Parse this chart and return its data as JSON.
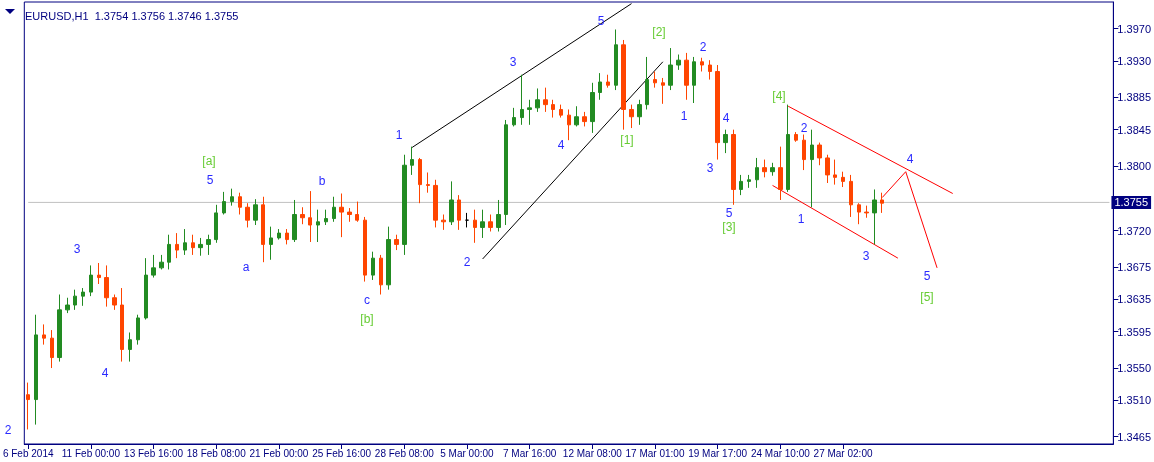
{
  "chart_data": {
    "type": "candlestick",
    "title": "EURUSD,H1  1.3754 1.3756 1.3746 1.3755",
    "categories": [
      "6 Feb 2014",
      null,
      null,
      null,
      null,
      null,
      null,
      null,
      "11 Feb 00:00",
      null,
      null,
      null,
      null,
      null,
      null,
      null,
      "13 Feb 16:00",
      null,
      null,
      null,
      null,
      null,
      null,
      null,
      "18 Feb 08:00",
      null,
      null,
      null,
      null,
      null,
      null,
      null,
      "21 Feb 00:00",
      null,
      null,
      null,
      null,
      null,
      null,
      null,
      "25 Feb 16:00",
      null,
      null,
      null,
      null,
      null,
      null,
      null,
      "28 Feb 08:00",
      null,
      null,
      null,
      null,
      null,
      null,
      null,
      "5 Mar 00:00",
      null,
      null,
      null,
      null,
      null,
      null,
      null,
      "7 Mar 16:00",
      null,
      null,
      null,
      null,
      null,
      null,
      null,
      "12 Mar 08:00",
      null,
      null,
      null,
      null,
      null,
      null,
      null,
      "17 Mar 01:00",
      null,
      null,
      null,
      null,
      null,
      null,
      null,
      "19 Mar 17:00",
      null,
      null,
      null,
      null,
      null,
      null,
      null,
      "24 Mar 10:00",
      null,
      null,
      null,
      null,
      null,
      null,
      null,
      "27 Mar 02:00",
      null,
      null,
      null,
      null,
      null,
      null,
      null,
      null,
      null,
      null,
      null,
      null,
      null,
      null,
      null,
      null,
      null,
      null,
      null,
      null,
      null,
      null,
      null,
      null,
      null,
      null,
      null,
      null,
      null,
      null,
      null,
      null,
      null,
      null
    ],
    "ylim": [
      1.3456,
      1.4003
    ],
    "yticks": [
      {
        "value": 1.3465,
        "label": "1.3465"
      },
      {
        "value": 1.351,
        "label": "1.3510"
      },
      {
        "value": 1.355,
        "label": "1.3550"
      },
      {
        "value": 1.3595,
        "label": "1.3595"
      },
      {
        "value": 1.3635,
        "label": "1.3635"
      },
      {
        "value": 1.3675,
        "label": "1.3675"
      },
      {
        "value": 1.372,
        "label": "1.3720"
      },
      {
        "value": 1.38,
        "label": "1.3800"
      },
      {
        "value": 1.3845,
        "label": "1.3845"
      },
      {
        "value": 1.3885,
        "label": "1.3885"
      },
      {
        "value": 1.393,
        "label": "1.3930"
      },
      {
        "value": 1.397,
        "label": "1.3970"
      }
    ],
    "ref_lines": [
      {
        "axis": "y",
        "value": 1.3755,
        "label": "1.3755",
        "color": "#c0c0c0"
      }
    ],
    "grid": false,
    "annotations": [
      "2",
      "3",
      "4",
      "5",
      "[a]",
      "a",
      "b",
      "c",
      "[b]",
      "1",
      "2",
      "3",
      "4",
      "5",
      "[1]",
      "[2]",
      "1",
      "2",
      "3",
      "4",
      "5",
      "[3]",
      "[4]",
      "2",
      "1",
      "3",
      "4",
      "5",
      "[5]"
    ],
    "series": [
      {
        "ohlc": [
          [
            1.3517,
            1.3532,
            1.3474,
            1.3511
          ],
          [
            1.3511,
            1.3616,
            1.348,
            1.3591
          ],
          [
            1.3591,
            1.3604,
            1.3579,
            1.3587
          ],
          [
            1.3587,
            1.3597,
            1.355,
            1.3563
          ],
          [
            1.3563,
            1.3641,
            1.3558,
            1.3622
          ],
          [
            1.3622,
            1.3637,
            1.3618,
            1.3628
          ],
          [
            1.3628,
            1.3647,
            1.3622,
            1.3639
          ],
          [
            1.3639,
            1.3649,
            1.3627,
            1.3644
          ],
          [
            1.3644,
            1.3677,
            1.3639,
            1.3665
          ],
          [
            1.3665,
            1.368,
            1.3654,
            1.3662
          ],
          [
            1.3662,
            1.3677,
            1.3626,
            1.3637
          ],
          [
            1.3637,
            1.3641,
            1.3622,
            1.3628
          ],
          [
            1.3628,
            1.3649,
            1.3558,
            1.3573
          ],
          [
            1.3573,
            1.3594,
            1.3558,
            1.3585
          ],
          [
            1.3585,
            1.3616,
            1.3579,
            1.3612
          ],
          [
            1.3612,
            1.3686,
            1.361,
            1.3665
          ],
          [
            1.3665,
            1.369,
            1.3662,
            1.3674
          ],
          [
            1.3674,
            1.369,
            1.3672,
            1.3681
          ],
          [
            1.3681,
            1.3715,
            1.3672,
            1.3703
          ],
          [
            1.3703,
            1.3717,
            1.3686,
            1.3696
          ],
          [
            1.3696,
            1.3722,
            1.369,
            1.3705
          ],
          [
            1.3705,
            1.3715,
            1.369,
            1.3699
          ],
          [
            1.3699,
            1.3711,
            1.3689,
            1.3703
          ],
          [
            1.3703,
            1.3715,
            1.369,
            1.3709
          ],
          [
            1.3709,
            1.3752,
            1.3705,
            1.3742
          ],
          [
            1.3742,
            1.3768,
            1.374,
            1.3756
          ],
          [
            1.3756,
            1.3772,
            1.3751,
            1.3762
          ],
          [
            1.3762,
            1.3767,
            1.374,
            1.3749
          ],
          [
            1.3749,
            1.3754,
            1.3724,
            1.3733
          ],
          [
            1.3733,
            1.3759,
            1.3727,
            1.3752
          ],
          [
            1.3752,
            1.3762,
            1.3681,
            1.3703
          ],
          [
            1.3703,
            1.3725,
            1.3684,
            1.3711
          ],
          [
            1.3711,
            1.3722,
            1.3709,
            1.3717
          ],
          [
            1.3717,
            1.3722,
            1.3703,
            1.3709
          ],
          [
            1.3709,
            1.3758,
            1.3706,
            1.374
          ],
          [
            1.374,
            1.3749,
            1.3728,
            1.3736
          ],
          [
            1.3736,
            1.3769,
            1.3706,
            1.3727
          ],
          [
            1.3727,
            1.3746,
            1.3706,
            1.3731
          ],
          [
            1.3731,
            1.3746,
            1.3727,
            1.3735
          ],
          [
            1.3735,
            1.3762,
            1.3731,
            1.3749
          ],
          [
            1.3749,
            1.3766,
            1.3712,
            1.3743
          ],
          [
            1.3743,
            1.3748,
            1.3731,
            1.374
          ],
          [
            1.374,
            1.3756,
            1.3731,
            1.3733
          ],
          [
            1.3733,
            1.3737,
            1.3657,
            1.3665
          ],
          [
            1.3665,
            1.3694,
            1.3659,
            1.3686
          ],
          [
            1.3686,
            1.369,
            1.3641,
            1.3653
          ],
          [
            1.3653,
            1.3725,
            1.3647,
            1.3709
          ],
          [
            1.3709,
            1.3715,
            1.3696,
            1.3703
          ],
          [
            1.3703,
            1.3814,
            1.369,
            1.3801
          ],
          [
            1.3801,
            1.3824,
            1.3789,
            1.3808
          ],
          [
            1.3808,
            1.381,
            1.3754,
            1.3777
          ],
          [
            1.3777,
            1.3792,
            1.3767,
            1.3776
          ],
          [
            1.3776,
            1.3783,
            1.3724,
            1.3733
          ],
          [
            1.3733,
            1.374,
            1.3721,
            1.3731
          ],
          [
            1.3731,
            1.3781,
            1.3727,
            1.3758
          ],
          [
            1.3758,
            1.3764,
            1.3721,
            1.3733
          ],
          [
            1.3733,
            1.3742,
            1.3724,
            1.3733
          ],
          [
            1.3733,
            1.3746,
            1.3705,
            1.3724
          ],
          [
            1.3724,
            1.3746,
            1.3711,
            1.3731
          ],
          [
            1.3731,
            1.374,
            1.3719,
            1.3724
          ],
          [
            1.3724,
            1.3758,
            1.3719,
            1.374
          ],
          [
            1.374,
            1.3857,
            1.3727,
            1.3851
          ],
          [
            1.3851,
            1.3872,
            1.3849,
            1.386
          ],
          [
            1.386,
            1.3913,
            1.3851,
            1.387
          ],
          [
            1.387,
            1.3882,
            1.3851,
            1.3872
          ],
          [
            1.3872,
            1.3896,
            1.3867,
            1.3882
          ],
          [
            1.3882,
            1.3897,
            1.3867,
            1.3876
          ],
          [
            1.3876,
            1.3882,
            1.386,
            1.387
          ],
          [
            1.387,
            1.3876,
            1.386,
            1.3863
          ],
          [
            1.3863,
            1.387,
            1.3832,
            1.3851
          ],
          [
            1.3851,
            1.3874,
            1.3849,
            1.3861
          ],
          [
            1.3861,
            1.3867,
            1.3849,
            1.3855
          ],
          [
            1.3855,
            1.3903,
            1.3841,
            1.3891
          ],
          [
            1.3891,
            1.3915,
            1.3882,
            1.3904
          ],
          [
            1.3904,
            1.3913,
            1.3897,
            1.39
          ],
          [
            1.39,
            1.3969,
            1.3894,
            1.395
          ],
          [
            1.395,
            1.3956,
            1.3845,
            1.387
          ],
          [
            1.387,
            1.3876,
            1.3847,
            1.3861
          ],
          [
            1.3861,
            1.3882,
            1.3851,
            1.3876
          ],
          [
            1.3876,
            1.3935,
            1.387,
            1.3907
          ],
          [
            1.3907,
            1.3917,
            1.3897,
            1.3903
          ],
          [
            1.3903,
            1.3909,
            1.3877,
            1.39
          ],
          [
            1.39,
            1.3946,
            1.3894,
            1.3925
          ],
          [
            1.3925,
            1.3938,
            1.3919,
            1.3931
          ],
          [
            1.3931,
            1.394,
            1.3882,
            1.39
          ],
          [
            1.39,
            1.3935,
            1.3878,
            1.3929
          ],
          [
            1.3929,
            1.3934,
            1.3917,
            1.3925
          ],
          [
            1.3925,
            1.3931,
            1.3907,
            1.3917
          ],
          [
            1.3917,
            1.3925,
            1.3808,
            1.3829
          ],
          [
            1.3829,
            1.3845,
            1.3816,
            1.3839
          ],
          [
            1.3839,
            1.3845,
            1.3752,
            1.3771
          ],
          [
            1.3771,
            1.3789,
            1.3764,
            1.3781
          ],
          [
            1.3781,
            1.3789,
            1.3773,
            1.3783
          ],
          [
            1.3783,
            1.381,
            1.3773,
            1.3798
          ],
          [
            1.3798,
            1.3808,
            1.3786,
            1.3793
          ],
          [
            1.3793,
            1.3804,
            1.3788,
            1.3798
          ],
          [
            1.3798,
            1.3824,
            1.3758,
            1.3771
          ],
          [
            1.3771,
            1.3876,
            1.3768,
            1.3839
          ],
          [
            1.3839,
            1.3842,
            1.383,
            1.3832
          ],
          [
            1.3832,
            1.3839,
            1.3795,
            1.3808
          ],
          [
            1.3808,
            1.3845,
            1.3749,
            1.3826
          ],
          [
            1.3826,
            1.3829,
            1.3801,
            1.381
          ],
          [
            1.381,
            1.3814,
            1.3779,
            1.3789
          ],
          [
            1.3789,
            1.3808,
            1.3777,
            1.3786
          ],
          [
            1.3786,
            1.3793,
            1.3774,
            1.3781
          ],
          [
            1.3781,
            1.3789,
            1.3737,
            1.3752
          ],
          [
            1.3752,
            1.3754,
            1.3728,
            1.3743
          ],
          [
            1.3743,
            1.3751,
            1.3736,
            1.3742
          ],
          [
            1.3742,
            1.3771,
            1.3703,
            1.3758
          ],
          [
            1.3758,
            1.3767,
            1.3742,
            1.3754
          ],
          null,
          null,
          null,
          null,
          null,
          null,
          null,
          null,
          null,
          null,
          null,
          null,
          null,
          null,
          null,
          null,
          null,
          null,
          null,
          null,
          null,
          null,
          null,
          null,
          null,
          null,
          null,
          null,
          null
        ],
        "colors": [
          "#ff4500",
          "#228b22",
          "#ff4500",
          "#ff4500",
          "#228b22",
          "#228b22",
          "#228b22",
          "#228b22",
          "#228b22",
          "#ff4500",
          "#ff4500",
          "#ff4500",
          "#ff4500",
          "#228b22",
          "#228b22",
          "#228b22",
          "#228b22",
          "#228b22",
          "#228b22",
          "#ff4500",
          "#228b22",
          "#ff4500",
          "#228b22",
          "#228b22",
          "#228b22",
          "#228b22",
          "#228b22",
          "#ff4500",
          "#ff4500",
          "#228b22",
          "#ff4500",
          "#228b22",
          "#228b22",
          "#ff4500",
          "#228b22",
          "#ff4500",
          "#ff4500",
          "#228b22",
          "#228b22",
          "#228b22",
          "#ff4500",
          "#ff4500",
          "#ff4500",
          "#ff4500",
          "#228b22",
          "#ff4500",
          "#228b22",
          "#ff4500",
          "#228b22",
          "#228b22",
          "#ff4500",
          "#ff4500",
          "#ff4500",
          "#ff4500",
          "#228b22",
          "#ff4500",
          "#000000",
          "#ff4500",
          "#228b22",
          "#ff4500",
          "#228b22",
          "#228b22",
          "#228b22",
          "#228b22",
          "#228b22",
          "#228b22",
          "#ff4500",
          "#ff4500",
          "#ff4500",
          "#ff4500",
          "#228b22",
          "#ff4500",
          "#228b22",
          "#228b22",
          "#ff4500",
          "#228b22",
          "#ff4500",
          "#ff4500",
          "#228b22",
          "#228b22",
          "#ff4500",
          "#ff4500",
          "#228b22",
          "#228b22",
          "#ff4500",
          "#228b22",
          "#ff4500",
          "#ff4500",
          "#ff4500",
          "#228b22",
          "#ff4500",
          "#228b22",
          "#228b22",
          "#228b22",
          "#ff4500",
          "#228b22",
          "#ff4500",
          "#228b22",
          "#ff4500",
          "#ff4500",
          "#228b22",
          "#ff4500",
          "#ff4500",
          "#ff4500",
          "#ff4500",
          "#ff4500",
          "#ff4500",
          "#ff4500",
          "#228b22",
          "#ff4500",
          null,
          null,
          null,
          null,
          null,
          null,
          null,
          null,
          null,
          null,
          null,
          null,
          null,
          null,
          null,
          null,
          null,
          null,
          null,
          null,
          null,
          null,
          null,
          null,
          null,
          null,
          null,
          null,
          null
        ]
      },
      {
        "type": "line",
        "color": "#000000",
        "values": [
          null,
          null,
          null,
          null,
          null,
          null,
          null,
          null,
          null,
          null,
          null,
          null,
          null,
          null,
          null,
          null,
          null,
          null,
          null,
          null,
          null,
          null,
          null,
          null,
          null,
          null,
          null,
          null,
          null,
          null,
          null,
          null,
          null,
          null,
          null,
          null,
          null,
          null,
          null,
          null,
          null,
          null,
          null,
          null,
          null,
          null,
          null,
          null,
          null,
          1.3823,
          null,
          null,
          null,
          null,
          null,
          null,
          null,
          null,
          null,
          null,
          null,
          null,
          null,
          null,
          null,
          null,
          null,
          null,
          null,
          null,
          null,
          null,
          null,
          null,
          null,
          null,
          null,
          1.4001,
          null,
          null,
          null,
          null,
          null,
          null,
          null,
          null,
          null,
          null,
          null,
          null,
          null,
          null,
          null,
          null,
          null,
          null,
          null,
          null,
          null,
          null,
          null,
          null,
          null,
          null,
          null,
          null,
          null,
          null,
          null,
          null,
          null,
          null,
          null,
          null,
          null,
          null,
          null,
          null,
          null,
          null,
          null,
          null,
          null,
          null,
          null,
          null,
          null,
          null,
          null,
          null,
          null,
          null,
          null,
          null,
          null,
          null,
          null,
          null,
          null
        ]
      },
      {
        "type": "line",
        "color": "#000000",
        "values": [
          null,
          null,
          null,
          null,
          null,
          null,
          null,
          null,
          null,
          null,
          null,
          null,
          null,
          null,
          null,
          null,
          null,
          null,
          null,
          null,
          null,
          null,
          null,
          null,
          null,
          null,
          null,
          null,
          null,
          null,
          null,
          null,
          null,
          null,
          null,
          null,
          null,
          null,
          null,
          null,
          null,
          null,
          null,
          null,
          null,
          null,
          null,
          null,
          null,
          null,
          null,
          null,
          null,
          null,
          null,
          null,
          null,
          null,
          1.3685,
          null,
          null,
          null,
          null,
          null,
          null,
          null,
          null,
          null,
          null,
          null,
          null,
          null,
          null,
          null,
          null,
          null,
          null,
          null,
          null,
          null,
          null,
          1.3929,
          null,
          null,
          null,
          null,
          null,
          null,
          null,
          null,
          null,
          null,
          null,
          null,
          null,
          null,
          null,
          null,
          null,
          null,
          null,
          null,
          null,
          null,
          null,
          null,
          null,
          null,
          null,
          null,
          null,
          null,
          null,
          null,
          null,
          null,
          null,
          null,
          null,
          null,
          null,
          null,
          null,
          null,
          null,
          null,
          null,
          null,
          null,
          null,
          null,
          null,
          null,
          null,
          null,
          null,
          null,
          null,
          null
        ]
      },
      {
        "type": "line",
        "color": "#ff0000",
        "values": [
          null,
          null,
          null,
          null,
          null,
          null,
          null,
          null,
          null,
          null,
          null,
          null,
          null,
          null,
          null,
          null,
          null,
          null,
          null,
          null,
          null,
          null,
          null,
          null,
          null,
          null,
          null,
          null,
          null,
          null,
          null,
          null,
          null,
          null,
          null,
          null,
          null,
          null,
          null,
          null,
          null,
          null,
          null,
          null,
          null,
          null,
          null,
          null,
          null,
          null,
          null,
          null,
          null,
          null,
          null,
          null,
          null,
          null,
          null,
          null,
          null,
          null,
          null,
          null,
          null,
          null,
          null,
          null,
          null,
          null,
          null,
          null,
          null,
          null,
          null,
          null,
          null,
          null,
          null,
          null,
          null,
          null,
          null,
          null,
          null,
          null,
          null,
          null,
          null,
          null,
          null,
          null,
          null,
          null,
          null,
          null,
          null,
          1.3874,
          null,
          null,
          null,
          null,
          null,
          null,
          null,
          null,
          null,
          null,
          null,
          null,
          null,
          null,
          null,
          null,
          null,
          null,
          null,
          null,
          1.3766,
          null,
          null,
          null,
          null,
          null,
          null,
          null,
          null,
          null,
          null,
          null,
          null,
          null,
          null,
          null,
          null,
          null,
          null,
          null,
          null
        ]
      },
      {
        "type": "line",
        "color": "#ff0000",
        "values": [
          null,
          null,
          null,
          null,
          null,
          null,
          null,
          null,
          null,
          null,
          null,
          null,
          null,
          null,
          null,
          null,
          null,
          null,
          null,
          null,
          null,
          null,
          null,
          null,
          null,
          null,
          null,
          null,
          null,
          null,
          null,
          null,
          null,
          null,
          null,
          null,
          null,
          null,
          null,
          null,
          null,
          null,
          null,
          null,
          null,
          null,
          null,
          null,
          null,
          null,
          null,
          null,
          null,
          null,
          null,
          null,
          null,
          null,
          null,
          null,
          null,
          null,
          null,
          null,
          null,
          null,
          null,
          null,
          null,
          null,
          null,
          null,
          null,
          null,
          null,
          null,
          null,
          null,
          null,
          null,
          null,
          null,
          null,
          null,
          null,
          null,
          null,
          null,
          null,
          null,
          null,
          null,
          null,
          null,
          null,
          1.3776,
          null,
          null,
          null,
          null,
          null,
          null,
          null,
          null,
          null,
          null,
          null,
          null,
          null,
          null,
          null,
          1.3686,
          null,
          null,
          null,
          null,
          null,
          null,
          null,
          null,
          null,
          null,
          null,
          null,
          null,
          null,
          null,
          null,
          null,
          null,
          null,
          null,
          null,
          null,
          null,
          null,
          null,
          null,
          null
        ]
      },
      {
        "type": "line",
        "color": "#ff0000",
        "values": [
          null,
          null,
          null,
          null,
          null,
          null,
          null,
          null,
          null,
          null,
          null,
          null,
          null,
          null,
          null,
          null,
          null,
          null,
          null,
          null,
          null,
          null,
          null,
          null,
          null,
          null,
          null,
          null,
          null,
          null,
          null,
          null,
          null,
          null,
          null,
          null,
          null,
          null,
          null,
          null,
          null,
          null,
          null,
          null,
          null,
          null,
          null,
          null,
          null,
          null,
          null,
          null,
          null,
          null,
          null,
          null,
          null,
          null,
          null,
          null,
          null,
          null,
          null,
          null,
          null,
          null,
          null,
          null,
          null,
          null,
          null,
          null,
          null,
          null,
          null,
          null,
          null,
          null,
          null,
          null,
          null,
          null,
          null,
          null,
          null,
          null,
          null,
          null,
          null,
          null,
          null,
          null,
          null,
          null,
          null,
          null,
          null,
          null,
          null,
          null,
          null,
          null,
          null,
          null,
          null,
          null,
          null,
          null,
          null,
          1.3761,
          null,
          null,
          1.3793,
          null,
          null,
          null,
          1.3674,
          null,
          null,
          null,
          null,
          null,
          null,
          null,
          null,
          null,
          null,
          null,
          null,
          null,
          null,
          null,
          null,
          null,
          null,
          null,
          null,
          null,
          null
        ]
      }
    ]
  }
}
